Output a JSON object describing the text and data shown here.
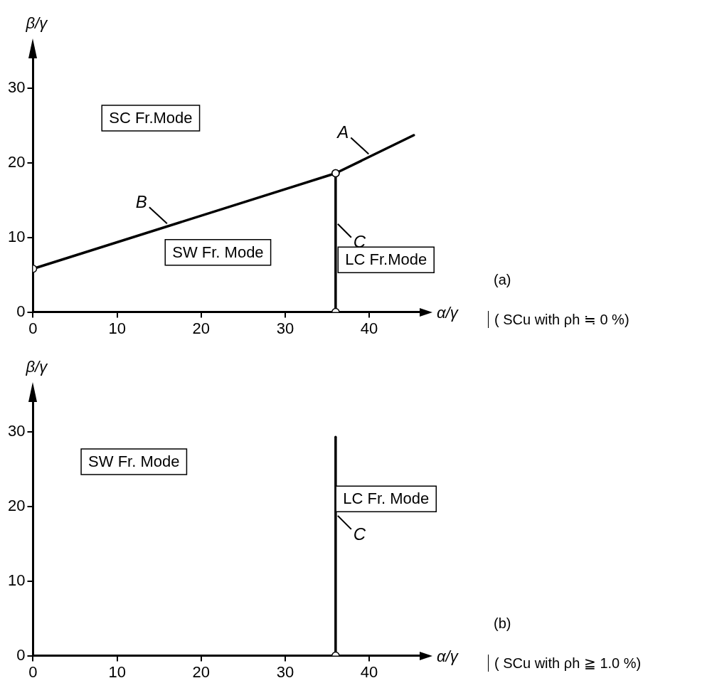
{
  "chart_data": [
    {
      "type": "line",
      "xlabel": "α/γ",
      "ylabel": "β/γ",
      "xlim": [
        0,
        46
      ],
      "ylim": [
        0,
        34
      ],
      "xticks": [
        0,
        10,
        20,
        30,
        40
      ],
      "yticks": [
        0,
        10,
        20,
        30
      ],
      "line_style": "solid",
      "annotations": [
        "SC Fr.Mode",
        "SW Fr. Mode",
        "LC Fr.Mode",
        "(a)",
        "( SCu with ρh ≒ 0 %)"
      ],
      "series": [
        {
          "name": "B",
          "color": "#000000",
          "marker": "circle",
          "x": [
            0,
            36
          ],
          "values": [
            5.8,
            18.6
          ]
        },
        {
          "name": "A",
          "color": "#000000",
          "x": [
            36,
            45.3
          ],
          "values": [
            18.6,
            23.7
          ]
        },
        {
          "name": "C",
          "color": "#000000",
          "marker": "circle",
          "x": [
            36,
            36
          ],
          "values": [
            0,
            18.6
          ]
        }
      ]
    },
    {
      "type": "line",
      "xlabel": "α/γ",
      "ylabel": "β/γ",
      "xlim": [
        0,
        46
      ],
      "ylim": [
        0,
        34
      ],
      "xticks": [
        0,
        10,
        20,
        30,
        40
      ],
      "yticks": [
        0,
        10,
        20,
        30
      ],
      "line_style": "solid",
      "annotations": [
        "SW Fr. Mode",
        "LC Fr. Mode",
        "(b)",
        "( SCu with ρh ≧ 1.0 %)"
      ],
      "series": [
        {
          "name": "C",
          "color": "#000000",
          "marker": "none",
          "x": [
            36,
            36
          ],
          "values": [
            0,
            29.3
          ]
        },
        {
          "type": "scatter",
          "color": "#000000",
          "marker": "circle",
          "x": [
            36
          ],
          "values": [
            0
          ]
        }
      ]
    }
  ]
}
